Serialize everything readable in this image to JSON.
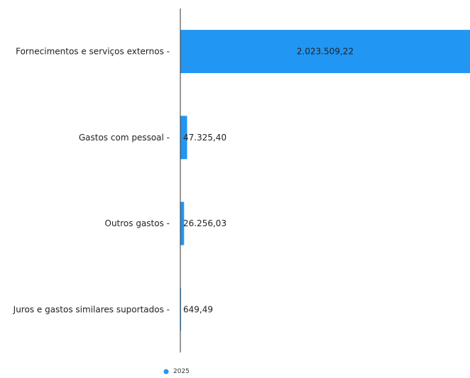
{
  "chart_data": {
    "type": "bar",
    "orientation": "horizontal",
    "categories": [
      "Fornecimentos e serviços externos -",
      "Gastos com pessoal -",
      "Outros gastos -",
      "Juros e gastos similares suportados -"
    ],
    "series": [
      {
        "name": "2025",
        "values": [
          2023509.22,
          47325.4,
          26256.03,
          649.49
        ],
        "labels": [
          "2.023.509,22",
          "47.325,40",
          "26.256,03",
          "649,49"
        ]
      }
    ],
    "xlim": [
      0,
      2023509.22
    ],
    "title": "",
    "xlabel": "",
    "ylabel": "",
    "grid": false,
    "legend": "bottom-left",
    "bar_color": "#2196f3",
    "axis_color": "#333333"
  }
}
